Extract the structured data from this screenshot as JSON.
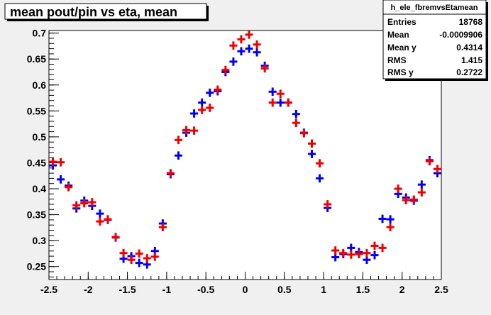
{
  "title": "mean pout/pin vs eta, mean",
  "stats": {
    "name": "h_ele_fbremvsEtamean",
    "rows": [
      {
        "label": "Entries",
        "value": "18768"
      },
      {
        "label": "Mean",
        "value": "-0.0009906"
      },
      {
        "label": "Mean y",
        "value": "0.4314"
      },
      {
        "label": "RMS",
        "value": "1.415"
      },
      {
        "label": "RMS y",
        "value": "0.2722"
      }
    ]
  },
  "colors": {
    "blue": "#0000ee",
    "red": "#ee0000",
    "frame": "#000000",
    "background": "#f0f0f0"
  },
  "chart_data": {
    "type": "scatter",
    "title": "mean pout/pin vs eta, mean",
    "xlim": [
      -2.5,
      2.5
    ],
    "ylim": [
      0.225,
      0.705
    ],
    "xticks": [
      -2.5,
      -2,
      -1.5,
      -1,
      -0.5,
      0,
      0.5,
      1,
      1.5,
      2,
      2.5
    ],
    "xtick_labels": [
      "-2.5",
      "-2",
      "-1.5",
      "-1",
      "-0.5",
      "0",
      "0.5",
      "1",
      "1.5",
      "2",
      "2.5"
    ],
    "yticks": [
      0.25,
      0.3,
      0.35,
      0.4,
      0.45,
      0.5,
      0.55,
      0.6,
      0.65,
      0.7
    ],
    "ytick_labels": [
      "0.25",
      "0.3",
      "0.35",
      "0.4",
      "0.45",
      "0.5",
      "0.55",
      "0.6",
      "0.65",
      "0.7"
    ],
    "grid": false,
    "bin_half_width": 0.05,
    "error_half_height": 0.008,
    "x": [
      -2.45,
      -2.35,
      -2.25,
      -2.15,
      -2.05,
      -1.95,
      -1.85,
      -1.75,
      -1.65,
      -1.55,
      -1.45,
      -1.35,
      -1.25,
      -1.15,
      -1.05,
      -0.95,
      -0.85,
      -0.75,
      -0.65,
      -0.55,
      -0.45,
      -0.35,
      -0.25,
      -0.15,
      -0.05,
      0.05,
      0.15,
      0.25,
      0.35,
      0.45,
      0.55,
      0.65,
      0.75,
      0.85,
      0.95,
      1.05,
      1.15,
      1.25,
      1.35,
      1.45,
      1.55,
      1.65,
      1.75,
      1.85,
      1.95,
      2.05,
      2.15,
      2.25,
      2.35,
      2.45
    ],
    "series": [
      {
        "color": "blue",
        "values": [
          0.445,
          0.418,
          0.406,
          0.362,
          0.377,
          0.367,
          0.352,
          0.34,
          0.306,
          0.265,
          0.27,
          0.257,
          0.254,
          0.28,
          0.333,
          0.428,
          0.464,
          0.508,
          0.545,
          0.566,
          0.585,
          0.588,
          0.625,
          0.645,
          0.665,
          0.67,
          0.663,
          0.637,
          0.587,
          0.566,
          0.566,
          0.544,
          0.508,
          0.467,
          0.42,
          0.363,
          0.268,
          0.274,
          0.286,
          0.278,
          0.263,
          0.272,
          0.342,
          0.341,
          0.39,
          0.383,
          0.377,
          0.408,
          0.455,
          0.43
        ]
      },
      {
        "color": "red",
        "values": [
          0.452,
          0.451,
          0.403,
          0.368,
          0.372,
          0.374,
          0.337,
          0.341,
          0.307,
          0.276,
          0.263,
          0.275,
          0.266,
          0.269,
          0.326,
          0.43,
          0.494,
          0.513,
          0.512,
          0.552,
          0.556,
          0.591,
          0.629,
          0.676,
          0.688,
          0.697,
          0.678,
          0.632,
          0.566,
          0.583,
          0.566,
          0.527,
          0.507,
          0.487,
          0.449,
          0.37,
          0.281,
          0.276,
          0.273,
          0.274,
          0.276,
          0.29,
          0.286,
          0.326,
          0.4,
          0.378,
          0.379,
          0.393,
          0.453,
          0.438
        ]
      }
    ]
  }
}
